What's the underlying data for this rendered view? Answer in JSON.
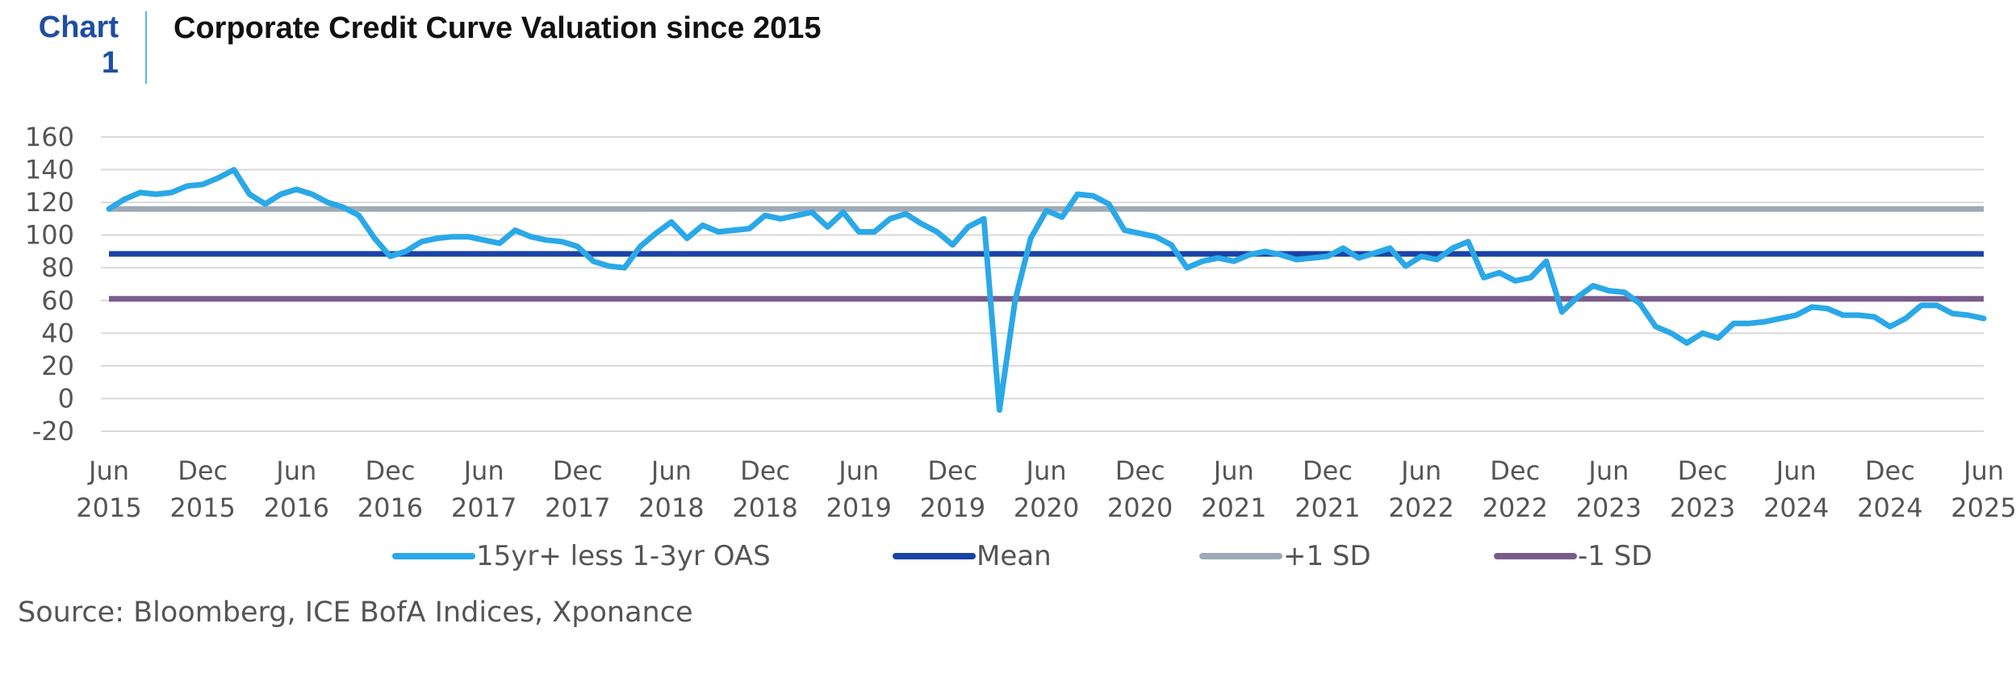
{
  "header": {
    "tag_line1": "Chart",
    "tag_line2": "1",
    "title": "Corporate Credit Curve Valuation since 2015"
  },
  "source": "Source: Bloomberg, ICE BofA Indices, Xponance",
  "chart_data": {
    "type": "line",
    "title": "Corporate Credit Curve Valuation since 2015",
    "xlabel": "",
    "ylabel": "",
    "ylim": [
      -20,
      160
    ],
    "yticks": [
      -20,
      0,
      20,
      40,
      60,
      80,
      100,
      120,
      140,
      160
    ],
    "xlim": [
      "2015-06",
      "2025-06"
    ],
    "xticks": [
      {
        "date": "2015-06",
        "label": [
          "Jun",
          "2015"
        ]
      },
      {
        "date": "2015-12",
        "label": [
          "Dec",
          "2015"
        ]
      },
      {
        "date": "2016-06",
        "label": [
          "Jun",
          "2016"
        ]
      },
      {
        "date": "2016-12",
        "label": [
          "Dec",
          "2016"
        ]
      },
      {
        "date": "2017-06",
        "label": [
          "Jun",
          "2017"
        ]
      },
      {
        "date": "2017-12",
        "label": [
          "Dec",
          "2017"
        ]
      },
      {
        "date": "2018-06",
        "label": [
          "Jun",
          "2018"
        ]
      },
      {
        "date": "2018-12",
        "label": [
          "Dec",
          "2018"
        ]
      },
      {
        "date": "2019-06",
        "label": [
          "Jun",
          "2019"
        ]
      },
      {
        "date": "2019-12",
        "label": [
          "Dec",
          "2019"
        ]
      },
      {
        "date": "2020-06",
        "label": [
          "Jun",
          "2020"
        ]
      },
      {
        "date": "2020-12",
        "label": [
          "Dec",
          "2020"
        ]
      },
      {
        "date": "2021-06",
        "label": [
          "Jun",
          "2021"
        ]
      },
      {
        "date": "2021-12",
        "label": [
          "Dec",
          "2021"
        ]
      },
      {
        "date": "2022-06",
        "label": [
          "Jun",
          "2022"
        ]
      },
      {
        "date": "2022-12",
        "label": [
          "Dec",
          "2022"
        ]
      },
      {
        "date": "2023-06",
        "label": [
          "Jun",
          "2023"
        ]
      },
      {
        "date": "2023-12",
        "label": [
          "Dec",
          "2023"
        ]
      },
      {
        "date": "2024-06",
        "label": [
          "Jun",
          "2024"
        ]
      },
      {
        "date": "2024-12",
        "label": [
          "Dec",
          "2024"
        ]
      },
      {
        "date": "2025-06",
        "label": [
          "Jun",
          "2025"
        ]
      }
    ],
    "grid": true,
    "legend_position": "bottom",
    "series": [
      {
        "name": "15yr+ less 1-3yr OAS",
        "color": "#2aa8e8",
        "points": [
          [
            "2015-06",
            116
          ],
          [
            "2015-07",
            122
          ],
          [
            "2015-08",
            126
          ],
          [
            "2015-09",
            125
          ],
          [
            "2015-10",
            126
          ],
          [
            "2015-11",
            130
          ],
          [
            "2015-12",
            131
          ],
          [
            "2016-01",
            135
          ],
          [
            "2016-02",
            140
          ],
          [
            "2016-03",
            125
          ],
          [
            "2016-04",
            119
          ],
          [
            "2016-05",
            125
          ],
          [
            "2016-06",
            128
          ],
          [
            "2016-07",
            125
          ],
          [
            "2016-08",
            120
          ],
          [
            "2016-09",
            117
          ],
          [
            "2016-10",
            112
          ],
          [
            "2016-11",
            98
          ],
          [
            "2016-12",
            87
          ],
          [
            "2017-01",
            90
          ],
          [
            "2017-02",
            96
          ],
          [
            "2017-03",
            98
          ],
          [
            "2017-04",
            99
          ],
          [
            "2017-05",
            99
          ],
          [
            "2017-06",
            97
          ],
          [
            "2017-07",
            95
          ],
          [
            "2017-08",
            103
          ],
          [
            "2017-09",
            99
          ],
          [
            "2017-10",
            97
          ],
          [
            "2017-11",
            96
          ],
          [
            "2017-12",
            93
          ],
          [
            "2018-01",
            84
          ],
          [
            "2018-02",
            81
          ],
          [
            "2018-03",
            80
          ],
          [
            "2018-04",
            93
          ],
          [
            "2018-05",
            101
          ],
          [
            "2018-06",
            108
          ],
          [
            "2018-07",
            98
          ],
          [
            "2018-08",
            106
          ],
          [
            "2018-09",
            102
          ],
          [
            "2018-10",
            103
          ],
          [
            "2018-11",
            104
          ],
          [
            "2018-12",
            112
          ],
          [
            "2019-01",
            110
          ],
          [
            "2019-02",
            112
          ],
          [
            "2019-03",
            114
          ],
          [
            "2019-04",
            105
          ],
          [
            "2019-05",
            114
          ],
          [
            "2019-06",
            102
          ],
          [
            "2019-07",
            102
          ],
          [
            "2019-08",
            110
          ],
          [
            "2019-09",
            113
          ],
          [
            "2019-10",
            107
          ],
          [
            "2019-11",
            102
          ],
          [
            "2019-12",
            94
          ],
          [
            "2020-01",
            105
          ],
          [
            "2020-02",
            110
          ],
          [
            "2020-03",
            -7
          ],
          [
            "2020-04",
            60
          ],
          [
            "2020-05",
            98
          ],
          [
            "2020-06",
            115
          ],
          [
            "2020-07",
            111
          ],
          [
            "2020-08",
            125
          ],
          [
            "2020-09",
            124
          ],
          [
            "2020-10",
            119
          ],
          [
            "2020-11",
            103
          ],
          [
            "2020-12",
            101
          ],
          [
            "2021-01",
            99
          ],
          [
            "2021-02",
            94
          ],
          [
            "2021-03",
            80
          ],
          [
            "2021-04",
            84
          ],
          [
            "2021-05",
            86
          ],
          [
            "2021-06",
            84
          ],
          [
            "2021-07",
            88
          ],
          [
            "2021-08",
            90
          ],
          [
            "2021-09",
            88
          ],
          [
            "2021-10",
            85
          ],
          [
            "2021-11",
            86
          ],
          [
            "2021-12",
            87
          ],
          [
            "2022-01",
            92
          ],
          [
            "2022-02",
            86
          ],
          [
            "2022-03",
            89
          ],
          [
            "2022-04",
            92
          ],
          [
            "2022-05",
            81
          ],
          [
            "2022-06",
            87
          ],
          [
            "2022-07",
            85
          ],
          [
            "2022-08",
            92
          ],
          [
            "2022-09",
            96
          ],
          [
            "2022-10",
            74
          ],
          [
            "2022-11",
            77
          ],
          [
            "2022-12",
            72
          ],
          [
            "2023-01",
            74
          ],
          [
            "2023-02",
            84
          ],
          [
            "2023-03",
            53
          ],
          [
            "2023-04",
            62
          ],
          [
            "2023-05",
            69
          ],
          [
            "2023-06",
            66
          ],
          [
            "2023-07",
            65
          ],
          [
            "2023-08",
            58
          ],
          [
            "2023-09",
            44
          ],
          [
            "2023-10",
            40
          ],
          [
            "2023-11",
            34
          ],
          [
            "2023-12",
            40
          ],
          [
            "2024-01",
            37
          ],
          [
            "2024-02",
            46
          ],
          [
            "2024-03",
            46
          ],
          [
            "2024-04",
            47
          ],
          [
            "2024-05",
            49
          ],
          [
            "2024-06",
            51
          ],
          [
            "2024-07",
            56
          ],
          [
            "2024-08",
            55
          ],
          [
            "2024-09",
            51
          ],
          [
            "2024-10",
            51
          ],
          [
            "2024-11",
            50
          ],
          [
            "2024-12",
            44
          ],
          [
            "2025-01",
            49
          ],
          [
            "2025-02",
            57
          ],
          [
            "2025-03",
            57
          ],
          [
            "2025-04",
            52
          ],
          [
            "2025-05",
            51
          ],
          [
            "2025-06",
            49
          ]
        ]
      },
      {
        "name": "Mean",
        "color": "#1a43a6",
        "constant": 88.5
      },
      {
        "name": "+1 SD",
        "color": "#9eaab8",
        "constant": 116
      },
      {
        "name": "-1 SD",
        "color": "#7a5c8c",
        "constant": 61
      }
    ]
  }
}
